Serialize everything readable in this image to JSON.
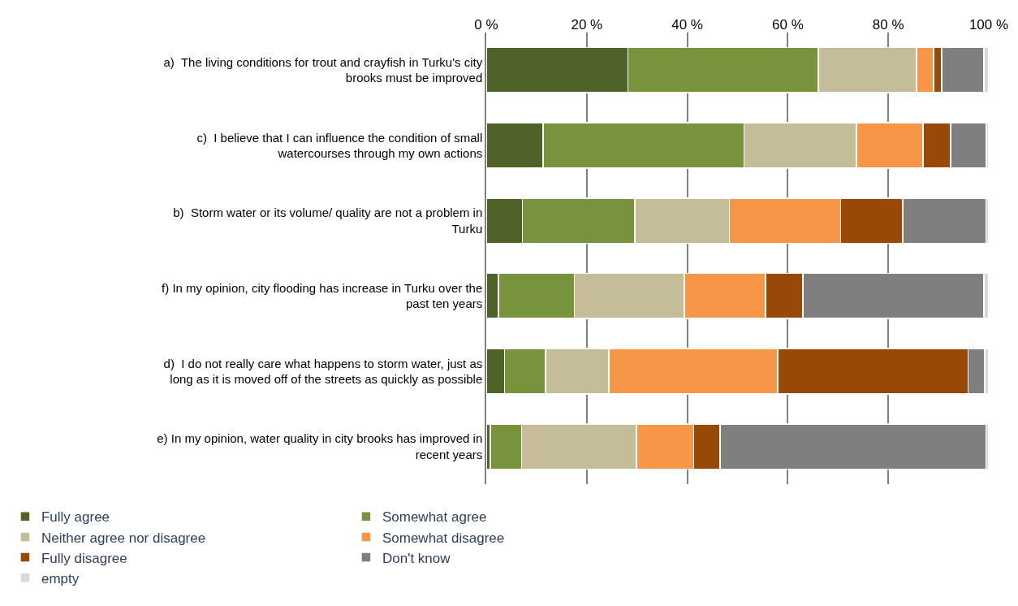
{
  "chart_data": {
    "type": "bar",
    "orientation": "horizontal",
    "stacked": true,
    "categories": [
      "a)  The living conditions for trout and crayfish in Turku's city\nbrooks must be improved",
      "c)  I believe that I can influence the condition of small\nwatercourses through my own actions",
      "b)  Storm water or its volume/ quality are not a problem in\nTurku",
      "f) In my opinion, city flooding has increase in Turku over the\npast ten years",
      "d)  I do not really care what happens to storm water, just as\nlong as it is moved off of the streets as quickly as possible",
      "e) In my opinion, water quality in city brooks has improved in\nrecent years"
    ],
    "series": [
      {
        "name": "Fully agree",
        "color": "#4f6228",
        "values": [
          28.2,
          11.3,
          7.2,
          2.4,
          3.6,
          0.8
        ]
      },
      {
        "name": "Somewhat agree",
        "color": "#77933c",
        "values": [
          37.9,
          40.0,
          22.4,
          15.1,
          8.2,
          6.2
        ]
      },
      {
        "name": "Neither agree nor disagree",
        "color": "#c4bd97",
        "values": [
          19.5,
          22.4,
          18.8,
          21.9,
          12.6,
          22.9
        ]
      },
      {
        "name": "Somewhat disagree",
        "color": "#f79646",
        "values": [
          3.4,
          13.2,
          22.1,
          16.2,
          33.6,
          11.4
        ]
      },
      {
        "name": "Fully disagree",
        "color": "#984807",
        "values": [
          1.6,
          5.5,
          12.4,
          7.4,
          37.9,
          5.2
        ]
      },
      {
        "name": "Don't know",
        "color": "#7f7f7f",
        "values": [
          8.4,
          7.1,
          16.5,
          36.0,
          3.3,
          52.9
        ]
      },
      {
        "name": "empty",
        "color": "#d9d9d9",
        "values": [
          1.0,
          0.5,
          0.6,
          1.0,
          0.8,
          0.6
        ]
      }
    ],
    "xlim": [
      0,
      100
    ],
    "xticks": [
      {
        "value": 0,
        "label": "0 %"
      },
      {
        "value": 20,
        "label": "20 %"
      },
      {
        "value": 40,
        "label": "40 %"
      },
      {
        "value": 60,
        "label": "60 %"
      },
      {
        "value": 80,
        "label": "80 %"
      },
      {
        "value": 100,
        "label": "100 %"
      }
    ],
    "grid": "x",
    "legend": "bottom"
  }
}
